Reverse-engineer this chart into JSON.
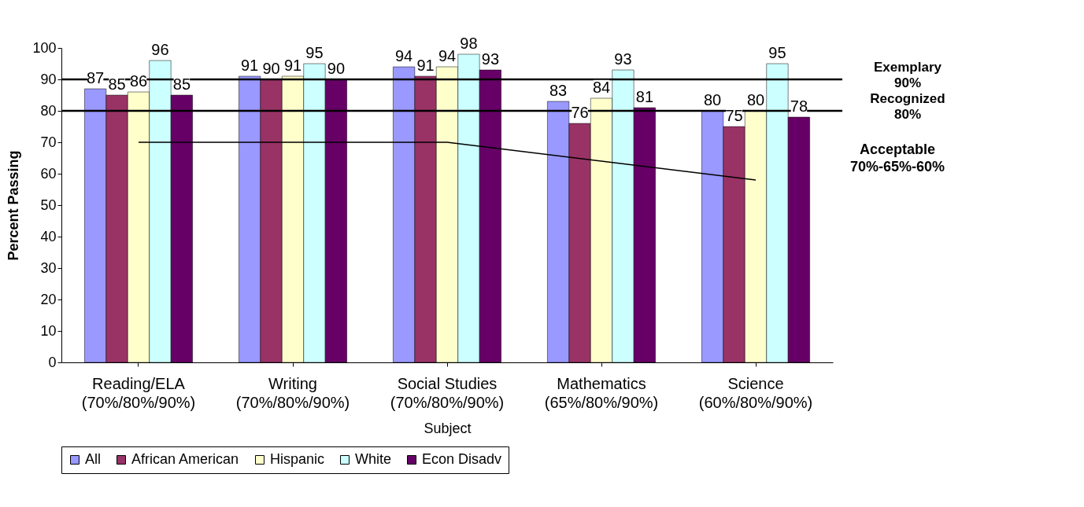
{
  "chart_data": {
    "type": "bar",
    "xlabel": "Subject",
    "ylabel": "Percent Passing",
    "categories": [
      "Reading/ELA\n(70%/80%/90%)",
      "Writing\n(70%/80%/90%)",
      "Social Studies\n(70%/80%/90%)",
      "Mathematics\n(65%/80%/90%)",
      "Science\n(60%/80%/90%)"
    ],
    "series": [
      {
        "name": "All",
        "color": "#9999ff",
        "values": [
          87,
          91,
          94,
          83,
          80
        ]
      },
      {
        "name": "African American",
        "color": "#993366",
        "values": [
          85,
          90,
          91,
          76,
          75
        ]
      },
      {
        "name": "Hispanic",
        "color": "#ffffcc",
        "values": [
          86,
          91,
          94,
          84,
          80
        ]
      },
      {
        "name": "White",
        "color": "#ccffff",
        "values": [
          96,
          95,
          98,
          93,
          95
        ]
      },
      {
        "name": "Econ Disadv",
        "color": "#660066",
        "values": [
          85,
          90,
          93,
          81,
          78
        ]
      },
      {
        "type": "line",
        "color": "#000000",
        "values": [
          70,
          70,
          70,
          64,
          58
        ],
        "value_labels": [
          null,
          null,
          null,
          null,
          null
        ]
      }
    ],
    "ylim": [
      0,
      100
    ],
    "yticks": [
      0,
      10,
      20,
      30,
      40,
      50,
      60,
      70,
      80,
      90,
      100
    ],
    "data_labels": true,
    "grid": false,
    "legend": "bottom",
    "ref_lines": [
      {
        "axis": "y",
        "value": 90,
        "label": "Exemplary\n90%"
      },
      {
        "axis": "y",
        "value": 80,
        "label": "Recognized\n80%"
      }
    ],
    "annotations": [
      "Acceptable\n70%-65%-60%"
    ]
  }
}
